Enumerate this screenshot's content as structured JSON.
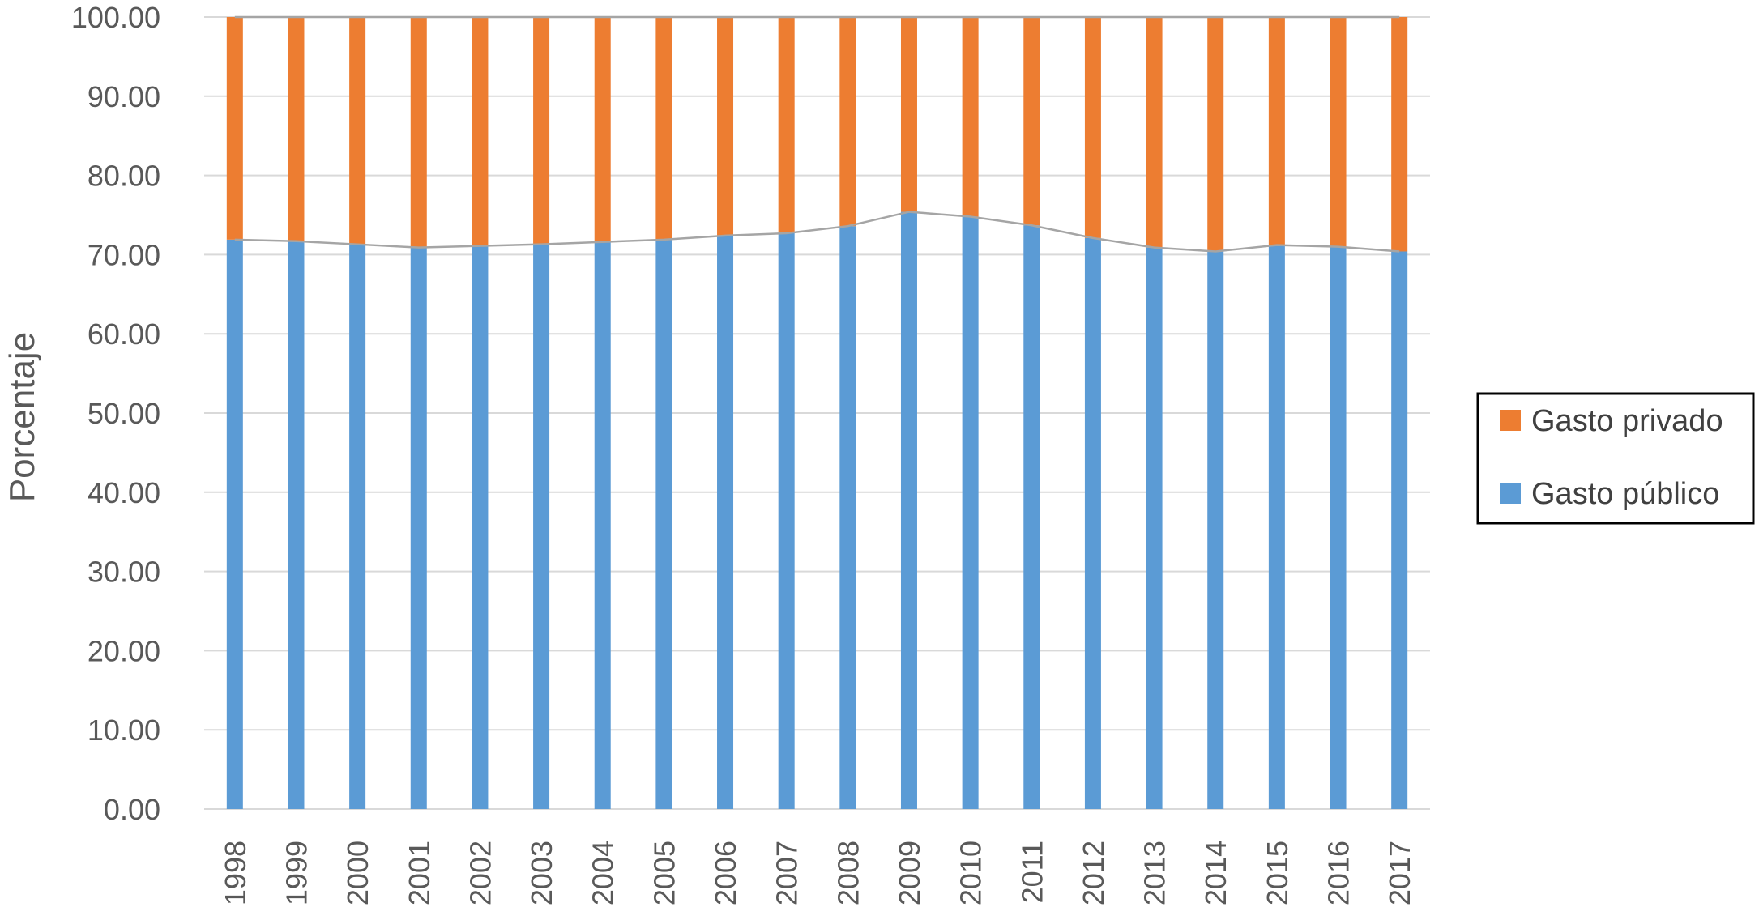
{
  "chart_data": {
    "type": "bar",
    "stacked": true,
    "categories": [
      "1998",
      "1999",
      "2000",
      "2001",
      "2002",
      "2003",
      "2004",
      "2005",
      "2006",
      "2007",
      "2008",
      "2009",
      "2010",
      "2011",
      "2012",
      "2013",
      "2014",
      "2015",
      "2016",
      "2017"
    ],
    "series": [
      {
        "name": "Gasto público",
        "color": "#5B9BD5",
        "values": [
          71.9,
          71.7,
          71.3,
          70.9,
          71.1,
          71.3,
          71.6,
          71.9,
          72.4,
          72.7,
          73.6,
          75.4,
          74.8,
          73.7,
          72.1,
          70.9,
          70.4,
          71.2,
          71.0,
          70.4
        ]
      },
      {
        "name": "Gasto privado",
        "color": "#ED7D31",
        "values": [
          28.1,
          28.3,
          28.7,
          29.1,
          28.9,
          28.7,
          28.4,
          28.1,
          27.6,
          27.3,
          26.4,
          24.6,
          25.2,
          26.3,
          27.9,
          29.1,
          29.6,
          28.8,
          29.0,
          29.6
        ]
      }
    ],
    "ylabel": "Porcentaje",
    "xlabel": "",
    "title": "",
    "ylim": [
      0,
      100
    ],
    "yticks": [
      "0.00",
      "10.00",
      "20.00",
      "30.00",
      "40.00",
      "50.00",
      "60.00",
      "70.00",
      "80.00",
      "90.00",
      "100.00"
    ],
    "grid": true,
    "series_lines": true,
    "legend_position": "right",
    "legend_order": [
      "Gasto privado",
      "Gasto público"
    ],
    "colors": {
      "grid": "#D9D9D9",
      "series_line": "#A5A5A5",
      "text": "#595959",
      "legend_border": "#000000"
    }
  }
}
